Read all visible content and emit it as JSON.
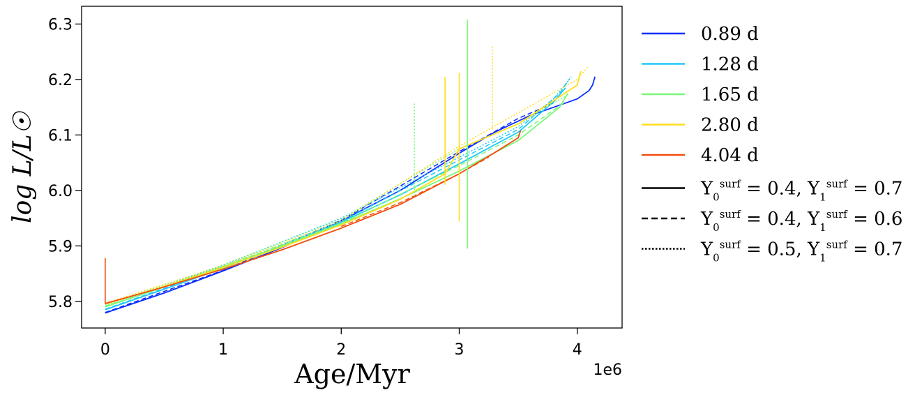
{
  "chart_data": {
    "type": "line",
    "xlabel": "Age/Myr",
    "ylabel": "log L/L☉",
    "x_offset_text": "1e6",
    "xlim": [
      -200000,
      4380000
    ],
    "ylim": [
      5.752,
      6.332
    ],
    "x_ticks": [
      0,
      1000000,
      2000000,
      3000000,
      4000000
    ],
    "x_tick_labels": [
      "0",
      "1",
      "2",
      "3",
      "4"
    ],
    "y_ticks": [
      5.8,
      5.9,
      6.0,
      6.1,
      6.2,
      6.3
    ],
    "y_tick_labels": [
      "5.8",
      "5.9",
      "6.0",
      "6.1",
      "6.2",
      "6.3"
    ],
    "grid": false,
    "legend_position": "outside-right",
    "periods": [
      {
        "label": "0.89 d",
        "color": "#0a2cff"
      },
      {
        "label": "1.28 d",
        "color": "#1ec8f8"
      },
      {
        "label": "1.65 d",
        "color": "#78f878"
      },
      {
        "label": "2.80 d",
        "color": "#ffdd1a"
      },
      {
        "label": "4.04 d",
        "color": "#f24d0e"
      }
    ],
    "linestyles": [
      {
        "label": "Y0surf = 0.4, Y1surf = 0.7",
        "style": "solid",
        "y0": "0.4",
        "y1": "0.7"
      },
      {
        "label": "Y0surf = 0.4, Y1surf = 0.6",
        "style": "dashed",
        "y0": "0.4",
        "y1": "0.6"
      },
      {
        "label": "Y0surf = 0.5, Y1surf = 0.7",
        "style": "dotted",
        "y0": "0.5",
        "y1": "0.7"
      }
    ],
    "series": [
      {
        "period": "0.89 d",
        "style": "solid",
        "x": [
          0,
          500000,
          1000000,
          1500000,
          2000000,
          2500000,
          3000000,
          3300000,
          3600000,
          3800000,
          4000000,
          4100000,
          4130000,
          4150000
        ],
        "y": [
          5.779,
          5.815,
          5.855,
          5.897,
          5.945,
          6.0,
          6.067,
          6.105,
          6.135,
          6.15,
          6.165,
          6.18,
          6.19,
          6.205
        ]
      },
      {
        "period": "0.89 d",
        "style": "dashed",
        "x": [
          0,
          1000000,
          2000000,
          3000000,
          3500000,
          3700000,
          3800000
        ],
        "y": [
          5.78,
          5.856,
          5.946,
          6.07,
          6.13,
          6.148,
          6.158
        ]
      },
      {
        "period": "1.28 d",
        "style": "solid",
        "x": [
          0,
          500000,
          1000000,
          1500000,
          2000000,
          2500000,
          3000000,
          3500000,
          3800000,
          3900000
        ],
        "y": [
          5.785,
          5.822,
          5.86,
          5.9,
          5.943,
          5.992,
          6.048,
          6.105,
          6.16,
          6.185
        ]
      },
      {
        "period": "1.28 d",
        "style": "dashed",
        "x": [
          0,
          1000000,
          2000000,
          3000000,
          3500000,
          3850000,
          3930000
        ],
        "y": [
          5.786,
          5.861,
          5.944,
          6.055,
          6.11,
          6.175,
          6.2
        ]
      },
      {
        "period": "1.28 d",
        "style": "dotted",
        "x": [
          0,
          1000000,
          2000000,
          3000000,
          3500000,
          3800000,
          3950000
        ],
        "y": [
          5.79,
          5.865,
          5.95,
          6.06,
          6.115,
          6.165,
          6.205
        ]
      },
      {
        "period": "1.65 d",
        "style": "solid",
        "x": [
          0,
          500000,
          1000000,
          1500000,
          2000000,
          2500000,
          3000000,
          3500000,
          3850000,
          3920000
        ],
        "y": [
          5.79,
          5.826,
          5.862,
          5.9,
          5.94,
          5.985,
          6.035,
          6.09,
          6.15,
          6.175
        ]
      },
      {
        "period": "1.65 d",
        "style": "dashed",
        "x": [
          0,
          1000000,
          2000000,
          3000000,
          3500000,
          3900000
        ],
        "y": [
          5.791,
          5.863,
          5.941,
          6.045,
          6.1,
          6.16
        ]
      },
      {
        "period": "1.65 d",
        "style": "dotted",
        "x": [
          0,
          1000000,
          2000000,
          2600000,
          3000000,
          3500000,
          3900000
        ],
        "y": [
          5.793,
          5.866,
          5.948,
          6.025,
          6.075,
          6.12,
          6.17
        ]
      },
      {
        "period": "2.80 d",
        "style": "solid",
        "x": [
          0,
          500000,
          1000000,
          1500000,
          2000000,
          2500000,
          2880000,
          3000000,
          3500000,
          4000000,
          4030000
        ],
        "y": [
          5.795,
          5.827,
          5.861,
          5.898,
          5.938,
          5.984,
          6.03,
          6.075,
          6.12,
          6.19,
          6.215
        ]
      },
      {
        "period": "2.80 d",
        "style": "dotted",
        "x": [
          0,
          1000000,
          2000000,
          3000000,
          3500000,
          4000000,
          4100000
        ],
        "y": [
          5.797,
          5.864,
          5.945,
          6.08,
          6.14,
          6.2,
          6.225
        ]
      },
      {
        "period": "4.04 d",
        "style": "solid",
        "x": [
          0,
          500000,
          1000000,
          1500000,
          2000000,
          2500000,
          3000000,
          3300000,
          3500000,
          3520000
        ],
        "y": [
          5.796,
          5.826,
          5.858,
          5.893,
          5.932,
          5.975,
          6.03,
          6.068,
          6.095,
          6.108
        ]
      },
      {
        "period": "4.04 d",
        "style": "dashed",
        "x": [
          2000000,
          2500000,
          3000000,
          3250000
        ],
        "y": [
          5.935,
          5.978,
          6.03,
          6.06
        ]
      }
    ],
    "spikes": [
      {
        "period": "4.04 d",
        "style": "solid",
        "x": 0,
        "y_low": 5.796,
        "y_high": 5.878
      },
      {
        "period": "1.65 d",
        "style": "dotted",
        "x": 2620000,
        "y_low": 5.99,
        "y_high": 6.16
      },
      {
        "period": "2.80 d",
        "style": "solid",
        "x": 2880000,
        "y_low": 6.01,
        "y_high": 6.205
      },
      {
        "period": "2.80 d",
        "style": "solid",
        "x": 3000000,
        "y_low": 5.944,
        "y_high": 6.212
      },
      {
        "period": "1.65 d",
        "style": "solid",
        "x": 3070000,
        "y_low": 5.895,
        "y_high": 6.308
      },
      {
        "period": "2.80 d",
        "style": "dotted",
        "x": 3280000,
        "y_low": 6.11,
        "y_high": 6.262
      }
    ]
  }
}
